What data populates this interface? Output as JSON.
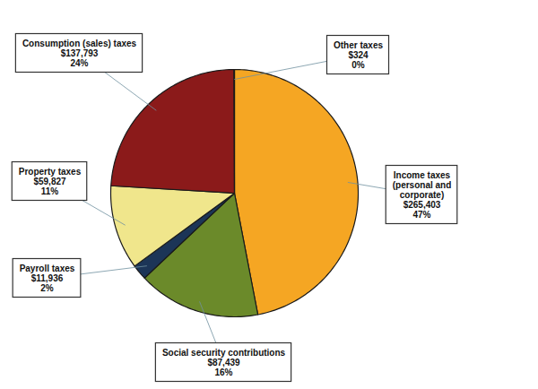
{
  "chart_data": {
    "type": "pie",
    "categories": [
      "Income taxes\n(personal and\ncorporate)",
      "Social security contributions",
      "Payroll taxes",
      "Property taxes",
      "Consumption (sales) taxes",
      "Other taxes"
    ],
    "values": [
      47,
      16,
      2,
      11,
      24,
      0.06
    ],
    "value_labels": [
      "47%",
      "16%",
      "2%",
      "11%",
      "24%",
      "0%"
    ],
    "amounts": [
      265403,
      87439,
      11936,
      59827,
      137793,
      324
    ],
    "amount_labels": [
      "$265,403",
      "$87,439",
      "$11,936",
      "$59,827",
      "$137,793",
      "$324"
    ],
    "colors": [
      "#F5A623",
      "#6B8A2A",
      "#1C3557",
      "#F0E68C",
      "#8B1A1A",
      "#F5A623"
    ],
    "data_labels": true
  }
}
